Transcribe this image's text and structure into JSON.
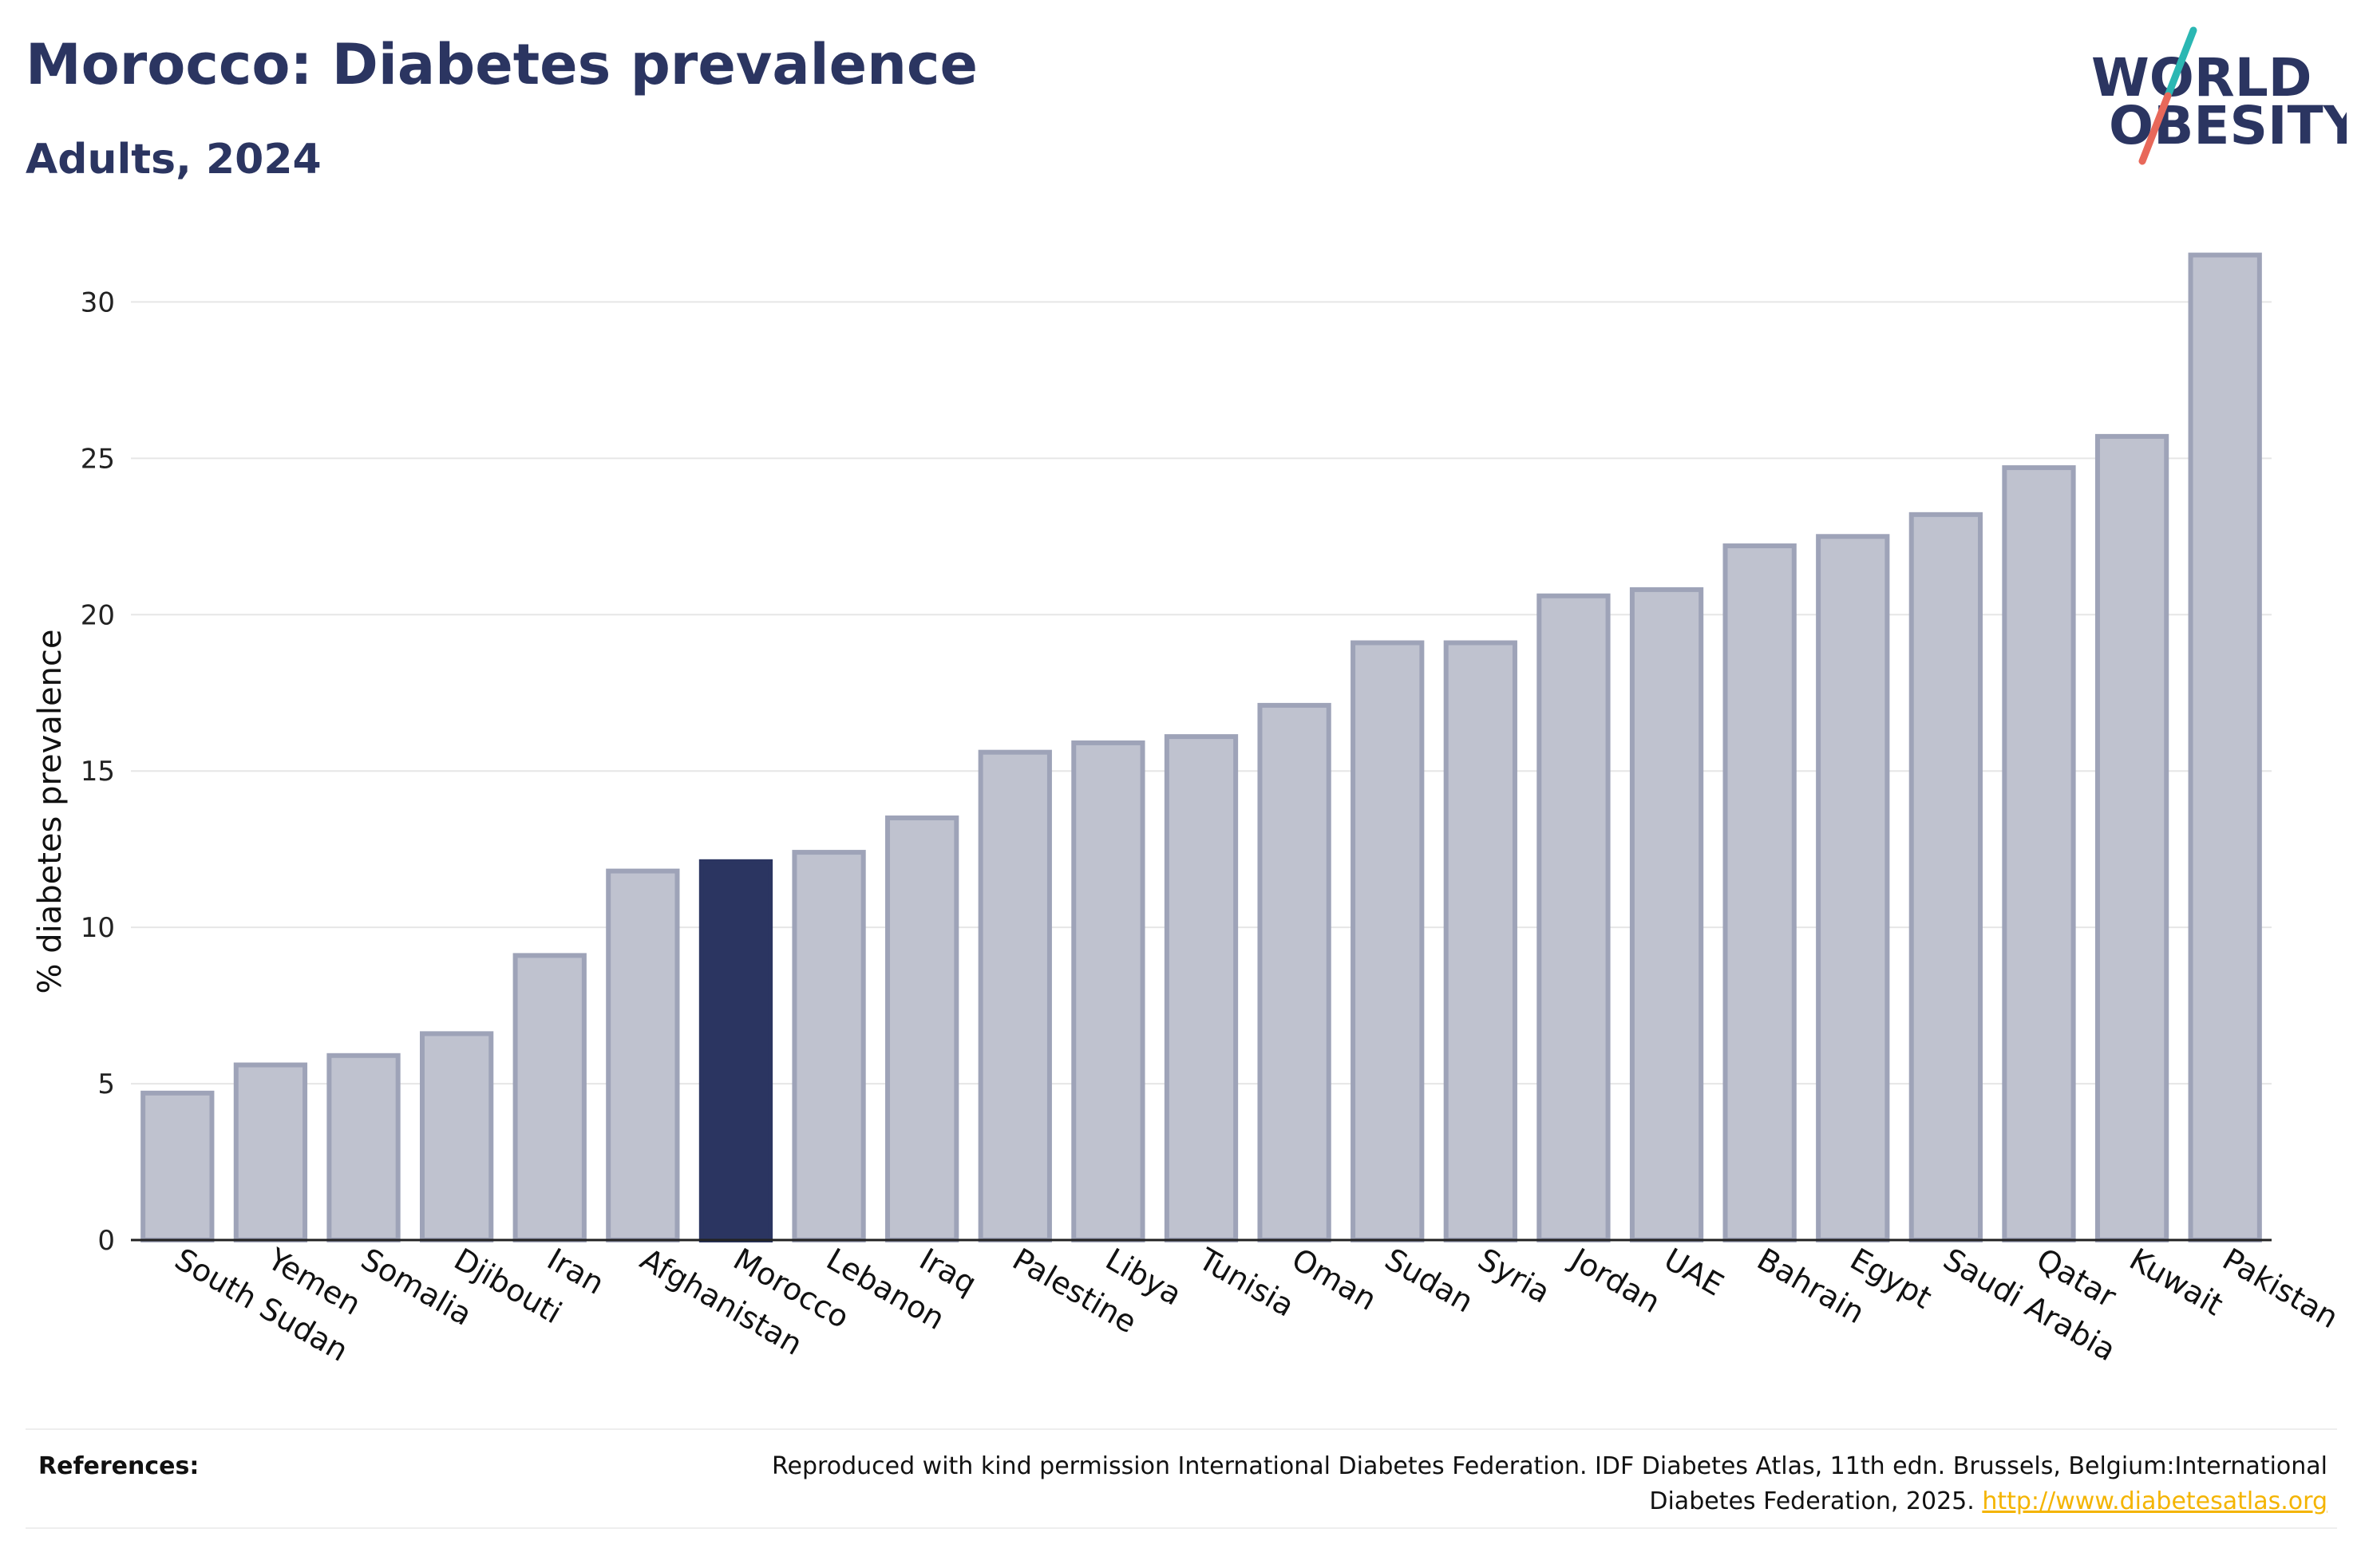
{
  "header": {
    "title": "Morocco: Diabetes prevalence",
    "subtitle": "Adults, 2024"
  },
  "logo": {
    "line1": "WORLD",
    "line2": "OBESITY",
    "slash_colors": [
      "#2bb7b3",
      "#e8685a"
    ]
  },
  "chart_data": {
    "type": "bar",
    "title": "Morocco: Diabetes prevalence",
    "subtitle": "Adults, 2024",
    "xlabel": "",
    "ylabel": "% diabetes prevalence",
    "ylim": [
      0,
      32
    ],
    "yticks": [
      "0",
      "5",
      "10",
      "15",
      "20",
      "25",
      "30"
    ],
    "grid": true,
    "highlight": "Morocco",
    "categories": [
      "South Sudan",
      "Yemen",
      "Somalia",
      "Djibouti",
      "Iran",
      "Afghanistan",
      "Morocco",
      "Lebanon",
      "Iraq",
      "Palestine",
      "Libya",
      "Tunisia",
      "Oman",
      "Sudan",
      "Syria",
      "Jordan",
      "UAE",
      "Bahrain",
      "Egypt",
      "Saudi Arabia",
      "Qatar",
      "Kuwait",
      "Pakistan"
    ],
    "values": [
      4.7,
      5.6,
      5.9,
      6.6,
      9.1,
      11.8,
      12.1,
      12.4,
      13.5,
      15.6,
      15.9,
      16.1,
      17.1,
      19.1,
      19.1,
      20.6,
      20.8,
      22.2,
      22.5,
      23.2,
      24.7,
      25.7,
      31.5
    ],
    "colors": {
      "bar": "#bfc2cf",
      "bar_edge": "#9ea3b8",
      "highlight": "#2b3561"
    }
  },
  "references": {
    "label": "References:",
    "text": "Reproduced with kind permission International Diabetes Federation. IDF Diabetes Atlas, 11th edn. Brussels, Belgium:International Diabetes Federation, 2025.",
    "link_text": "http://www.diabetesatlas.org",
    "link_color": "#f4b400"
  }
}
